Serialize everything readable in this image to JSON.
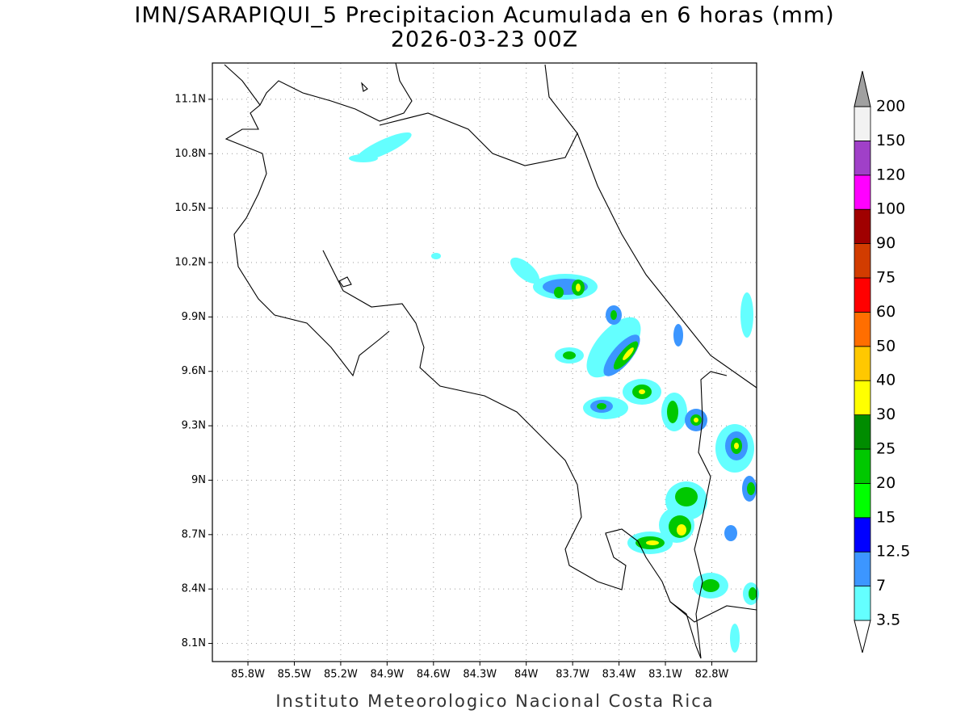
{
  "title": "IMN/SARAPIQUI_5 Precipitacion Acumulada en 6 horas (mm)",
  "subtitle": "2026-03-23 00Z",
  "footer": "Instituto Meteorologico Nacional Costa Rica",
  "map": {
    "xlim": [
      -86.03,
      -82.51
    ],
    "ylim": [
      8.0,
      11.3
    ],
    "xticks": [
      {
        "value": -85.8,
        "label": "85.8W"
      },
      {
        "value": -85.5,
        "label": "85.5W"
      },
      {
        "value": -85.2,
        "label": "85.2W"
      },
      {
        "value": -84.9,
        "label": "84.9W"
      },
      {
        "value": -84.6,
        "label": "84.6W"
      },
      {
        "value": -84.3,
        "label": "84.3W"
      },
      {
        "value": -84.0,
        "label": "84W"
      },
      {
        "value": -83.7,
        "label": "83.7W"
      },
      {
        "value": -83.4,
        "label": "83.4W"
      },
      {
        "value": -83.1,
        "label": "83.1W"
      },
      {
        "value": -82.8,
        "label": "82.8W"
      }
    ],
    "yticks": [
      {
        "value": 8.1,
        "label": "8.1N"
      },
      {
        "value": 8.4,
        "label": "8.4N"
      },
      {
        "value": 8.7,
        "label": "8.7N"
      },
      {
        "value": 9.0,
        "label": "9N"
      },
      {
        "value": 9.3,
        "label": "9.3N"
      },
      {
        "value": 9.6,
        "label": "9.6N"
      },
      {
        "value": 9.9,
        "label": "9.9N"
      },
      {
        "value": 10.2,
        "label": "10.2N"
      },
      {
        "value": 10.5,
        "label": "10.5N"
      },
      {
        "value": 10.8,
        "label": "10.8N"
      },
      {
        "value": 11.1,
        "label": "11.1N"
      }
    ],
    "grid": true
  },
  "colorbar": {
    "levels": [
      3.5,
      7,
      12.5,
      15,
      20,
      25,
      30,
      40,
      50,
      60,
      75,
      90,
      100,
      120,
      150,
      200
    ],
    "colors": [
      "#ffffff",
      "#64ffff",
      "#3c96ff",
      "#0000ff",
      "#00ff00",
      "#00c800",
      "#008c00",
      "#ffff00",
      "#ffc800",
      "#ff6e00",
      "#ff0000",
      "#d23c00",
      "#a00000",
      "#ff00ff",
      "#a040c8",
      "#f2f2f2",
      "#a0a0a0"
    ]
  }
}
